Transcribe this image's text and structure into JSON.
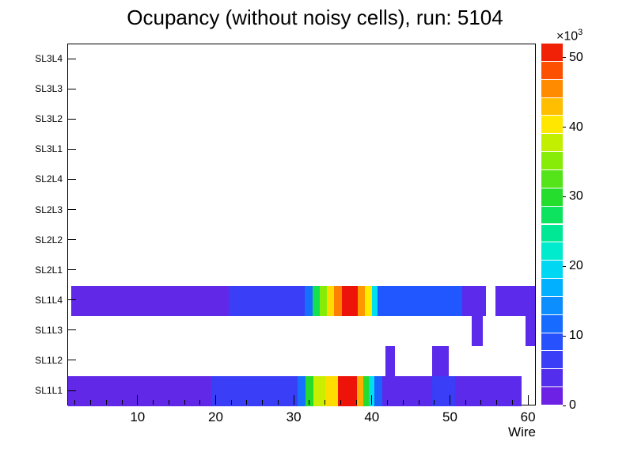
{
  "chart_data": {
    "type": "heatmap",
    "title": "Ocupancy (without noisy cells), run: 5104",
    "xlabel": "Wire",
    "x_range": [
      1,
      61
    ],
    "x_major_ticks": [
      10,
      20,
      30,
      40,
      50,
      60
    ],
    "x_minor_tick_step": 2,
    "y_labels_top_down": [
      "SL3L4",
      "SL3L3",
      "SL3L2",
      "SL3L1",
      "SL2L4",
      "SL2L3",
      "SL2L2",
      "SL2L1",
      "SL1L4",
      "SL1L3",
      "SL1L2",
      "SL1L1"
    ],
    "grid": false,
    "legend_position": "right-colorbar",
    "colorbar": {
      "min": 0,
      "max": 52000,
      "tick_values": [
        0,
        10,
        20,
        30,
        40,
        50
      ],
      "tick_scale": 1000,
      "exponent_base": "×10",
      "exponent_power": "3",
      "steps": 20
    },
    "palette": [
      [
        0.0,
        "#7a1ae0"
      ],
      [
        0.12,
        "#3c3cf5"
      ],
      [
        0.2,
        "#1e5aff"
      ],
      [
        0.33,
        "#00b4ff"
      ],
      [
        0.4,
        "#00ebeb"
      ],
      [
        0.5,
        "#00e678"
      ],
      [
        0.58,
        "#28dc28"
      ],
      [
        0.7,
        "#a0f000"
      ],
      [
        0.77,
        "#ffeb00"
      ],
      [
        0.85,
        "#ffaa00"
      ],
      [
        0.92,
        "#ff5500"
      ],
      [
        1.0,
        "#eb0a0a"
      ]
    ],
    "cells": [
      {
        "row": "SL1L4",
        "segments": [
          {
            "from": 1.4,
            "to": 21.6,
            "value": 2500
          },
          {
            "from": 21.6,
            "to": 31.3,
            "value": 6500
          },
          {
            "from": 31.3,
            "to": 32.3,
            "value": 12000
          },
          {
            "from": 32.3,
            "to": 33.2,
            "value": 28000
          },
          {
            "from": 33.2,
            "to": 34.1,
            "value": 35000
          },
          {
            "from": 34.1,
            "to": 35.1,
            "value": 41000
          },
          {
            "from": 35.1,
            "to": 36.1,
            "value": 46000
          },
          {
            "from": 36.1,
            "to": 38.1,
            "value": 51500
          },
          {
            "from": 38.1,
            "to": 39.0,
            "value": 45000
          },
          {
            "from": 39.0,
            "to": 39.9,
            "value": 40000
          },
          {
            "from": 39.9,
            "to": 40.6,
            "value": 20000
          },
          {
            "from": 40.6,
            "to": 51.5,
            "value": 10000
          },
          {
            "from": 51.5,
            "to": 54.5,
            "value": 3000
          },
          {
            "from": 55.7,
            "to": 60.8,
            "value": 3000
          }
        ]
      },
      {
        "row": "SL1L3",
        "segments": [
          {
            "from": 52.7,
            "to": 54.1,
            "value": 3000
          },
          {
            "from": 59.6,
            "to": 60.8,
            "value": 3000
          }
        ]
      },
      {
        "row": "SL1L2",
        "segments": [
          {
            "from": 41.6,
            "to": 42.9,
            "value": 3000
          },
          {
            "from": 47.6,
            "to": 49.8,
            "value": 3000
          }
        ]
      },
      {
        "row": "SL1L1",
        "segments": [
          {
            "from": 1.0,
            "to": 19.3,
            "value": 2500
          },
          {
            "from": 19.3,
            "to": 30.4,
            "value": 6500
          },
          {
            "from": 30.4,
            "to": 31.4,
            "value": 12000
          },
          {
            "from": 31.4,
            "to": 32.4,
            "value": 30000
          },
          {
            "from": 32.4,
            "to": 33.9,
            "value": 38000
          },
          {
            "from": 33.9,
            "to": 35.6,
            "value": 41000
          },
          {
            "from": 35.6,
            "to": 38.0,
            "value": 51500
          },
          {
            "from": 38.0,
            "to": 38.8,
            "value": 44000
          },
          {
            "from": 38.8,
            "to": 39.5,
            "value": 30000
          },
          {
            "from": 39.5,
            "to": 40.2,
            "value": 20000
          },
          {
            "from": 40.2,
            "to": 41.2,
            "value": 11000
          },
          {
            "from": 41.2,
            "to": 47.6,
            "value": 3000
          },
          {
            "from": 47.6,
            "to": 50.6,
            "value": 6500
          },
          {
            "from": 50.6,
            "to": 59.1,
            "value": 3000
          }
        ]
      }
    ]
  }
}
